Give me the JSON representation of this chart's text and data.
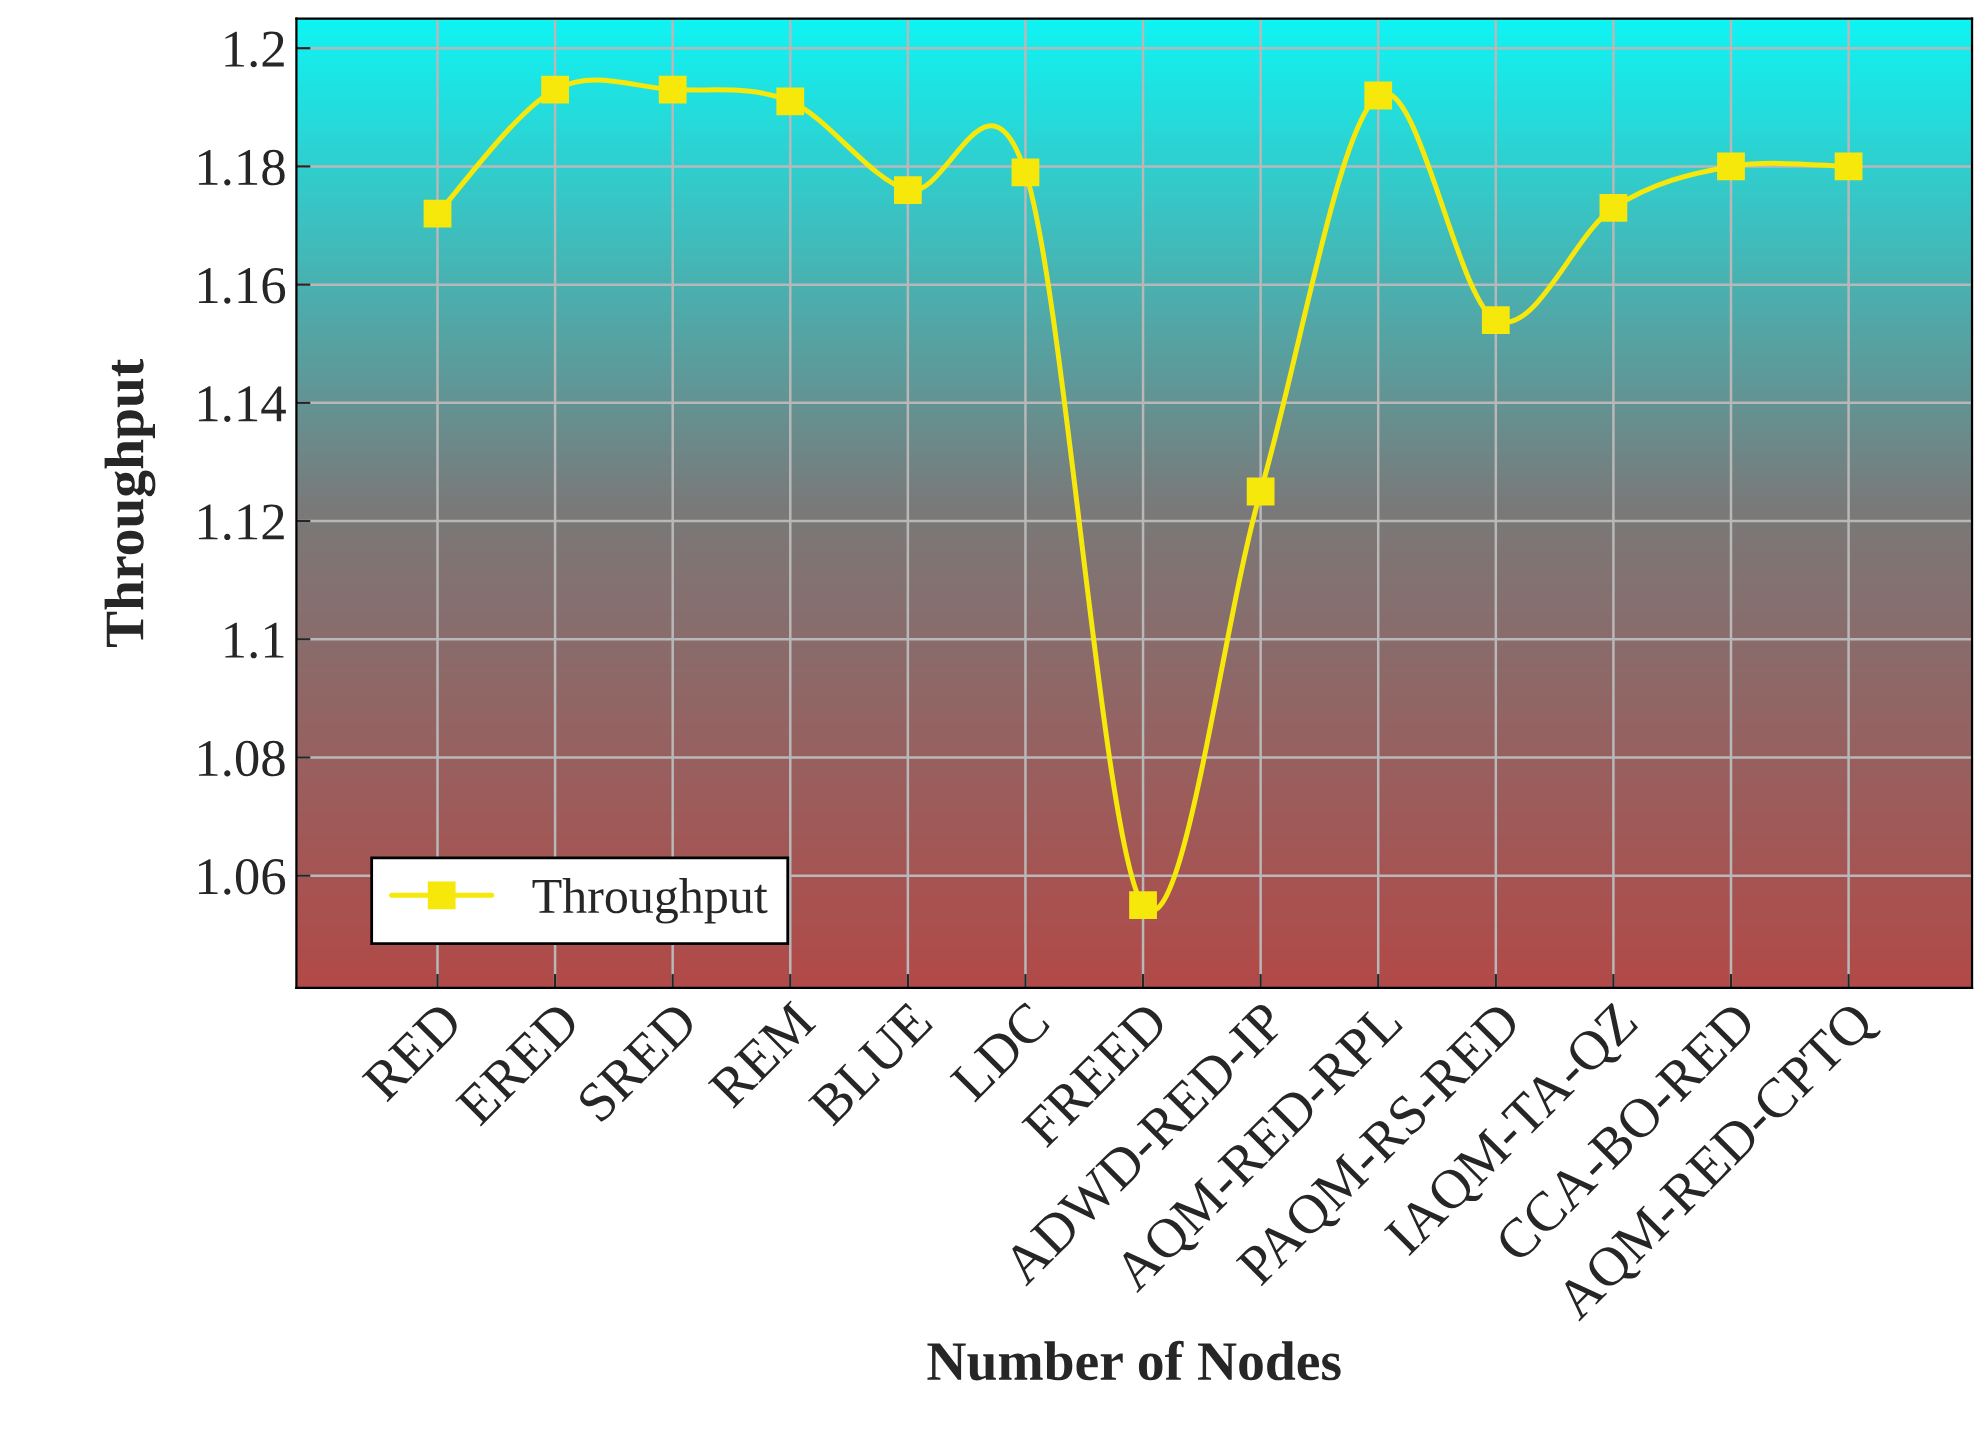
{
  "chart_data": {
    "type": "line",
    "xlabel": "Number of Nodes",
    "ylabel": "Throughput",
    "categories": [
      "RED",
      "ERED",
      "SRED",
      "REM",
      "BLUE",
      "LDC",
      "FREED",
      "ADWD-RED-IP",
      "AQM-RED-RPL",
      "PAQM-RS-RED",
      "IAQM-TA-QZ",
      "CCA-BO-RED",
      "AQM-RED-CPTQ"
    ],
    "series": [
      {
        "name": "Throughput",
        "color": "#f5e80a",
        "values": [
          1.172,
          1.193,
          1.193,
          1.191,
          1.176,
          1.179,
          1.055,
          1.125,
          1.192,
          1.154,
          1.173,
          1.18,
          1.18
        ]
      }
    ],
    "ylim": [
      1.041,
      1.205
    ],
    "yticks": [
      1.06,
      1.08,
      1.1,
      1.12,
      1.14,
      1.16,
      1.18,
      {
        "value": 1.2,
        "label": "1.2"
      }
    ],
    "grid": true,
    "legend": "bottom left",
    "marker": "square",
    "line_style": "solid"
  }
}
